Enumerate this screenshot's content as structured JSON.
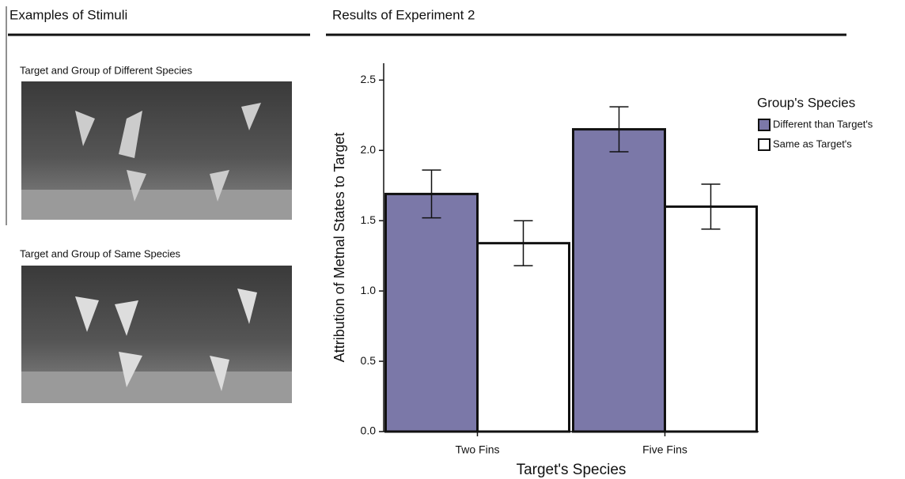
{
  "left_panel": {
    "title": "Examples of Stimuli",
    "images": [
      {
        "caption": "Target and Group of Different Species"
      },
      {
        "caption": "Target and Group of Same Species"
      }
    ]
  },
  "chart_data": {
    "type": "bar",
    "title": "Results of Experiment 2",
    "y_label": "Attribution of Metnal States to Target",
    "x_label": "Target's Species",
    "categories": [
      "Two Fins",
      "Five Fins"
    ],
    "series": [
      {
        "name": "Different than Target's",
        "color": "#7b78a8",
        "values": [
          1.69,
          2.15
        ],
        "errors": [
          0.17,
          0.16
        ]
      },
      {
        "name": "Same as Target's",
        "color": "#ffffff",
        "values": [
          1.34,
          1.6
        ],
        "errors": [
          0.16,
          0.16
        ]
      }
    ],
    "legend_title": "Group's Species",
    "legend": "right",
    "ylim": [
      0,
      2.62
    ],
    "yticks": [
      {
        "value": 0,
        "label": "0.0"
      },
      0.5,
      {
        "value": 1,
        "label": "1.0"
      },
      1.5,
      {
        "value": 2,
        "label": "2.0"
      },
      2.5
    ],
    "grid": false
  }
}
